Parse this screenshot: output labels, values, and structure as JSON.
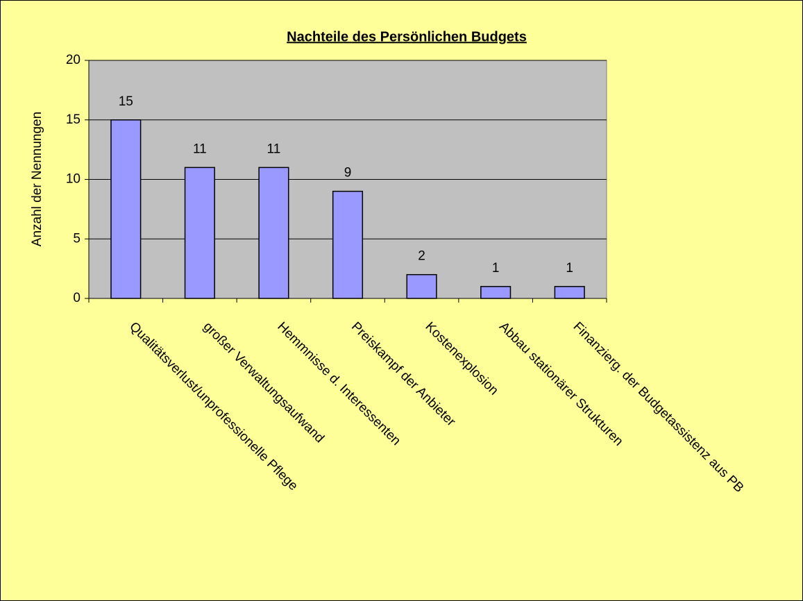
{
  "chart_data": {
    "type": "bar",
    "title": "Nachteile des Persönlichen Budgets",
    "y_label": "Anzahl der Nennungen",
    "categories": [
      "Qualitätsverlust/unprofessionelle Pflege",
      "großer Verwaltungsaufwand",
      "Hemmnisse d. Interessenten",
      "Preiskampf der Anbieter",
      "Kostenexplosion",
      "Abbau stationärer Strukturen",
      "Finanzierg. der Budgetassistenz aus PB"
    ],
    "values": [
      15,
      11,
      11,
      9,
      2,
      1,
      1
    ],
    "color": "#9999ff",
    "ylim": [
      0,
      20
    ],
    "yticks": [
      0,
      5,
      10,
      15,
      20
    ],
    "grid": true
  }
}
